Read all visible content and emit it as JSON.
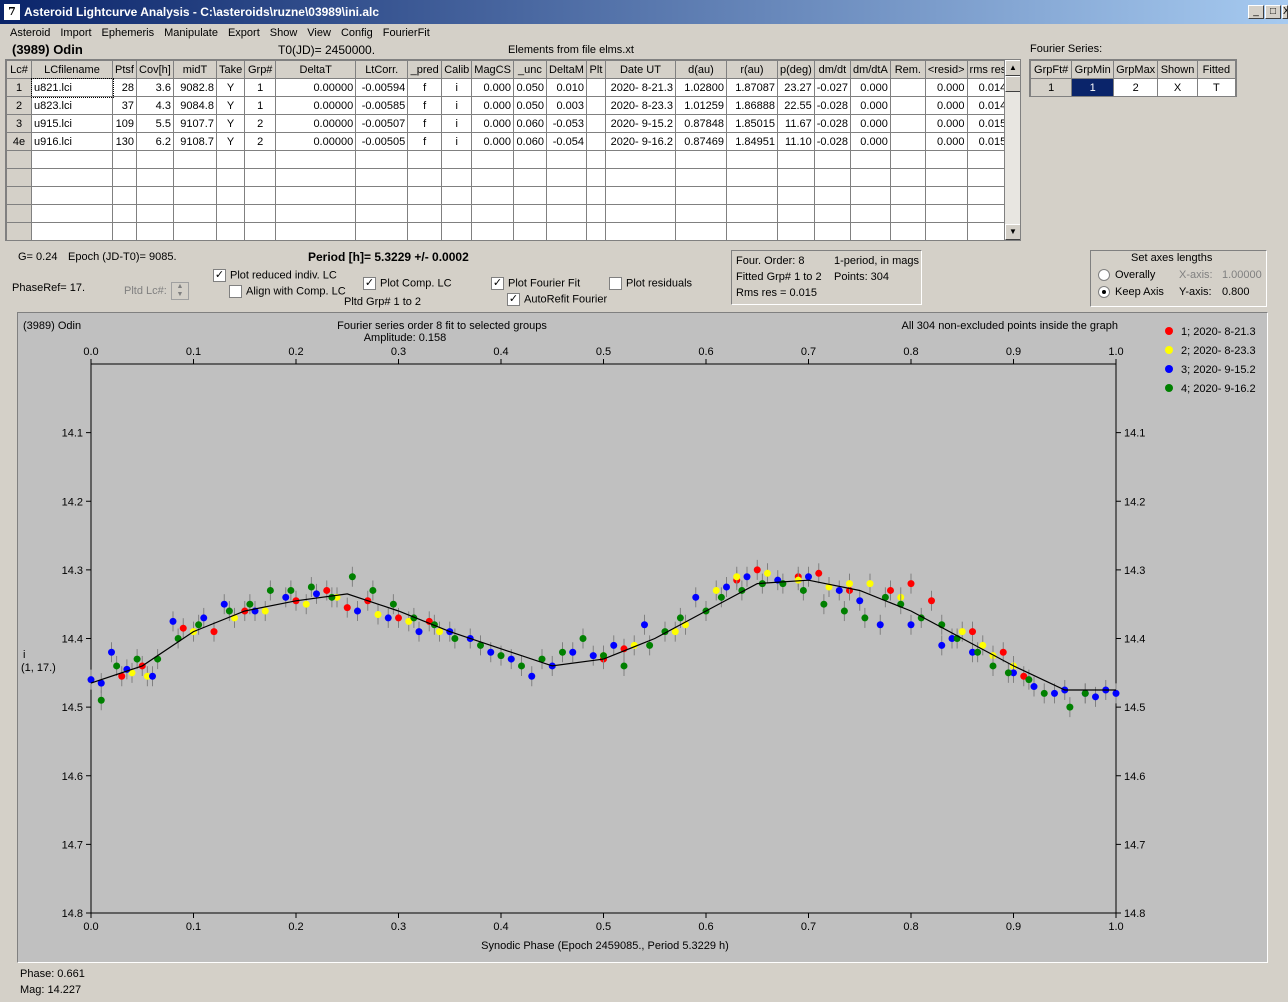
{
  "window": {
    "title": "Asteroid Lightcurve Analysis - C:\\asteroids\\ruzne\\03989\\ini.alc",
    "app_icon_text": "7",
    "btn_min": "_",
    "btn_max": "□",
    "btn_close": "X"
  },
  "menu": [
    "Asteroid",
    "Import",
    "Ephemeris",
    "Manipulate",
    "Export",
    "Show",
    "View",
    "Config",
    "FourierFit"
  ],
  "header": {
    "asteroid_name": "(3989)  Odin",
    "t0": "T0(JD)= 2450000.",
    "elements": "Elements from file elms.xt",
    "fourier_series": "Fourier Series:"
  },
  "lc_table": {
    "columns": [
      "Lc#",
      "LCfilename",
      "Ptsf",
      "Cov[h]",
      "midT",
      "Take",
      "Grp#",
      "DeltaT",
      "LtCorr.",
      "_pred",
      "Calib",
      "MagCS",
      "_unc",
      "DeltaM",
      "Plt",
      "Date UT",
      "d(au)",
      "r(au)",
      "p(deg)",
      "dm/dt",
      "dm/dtA",
      "Rem.",
      "<resid>",
      "rms res"
    ],
    "rows": [
      [
        "1",
        "u821.lci",
        "28",
        "3.6",
        "9082.8",
        "Y",
        "1",
        "0.00000",
        "-0.00594",
        "f",
        "i",
        "0.000",
        "0.050",
        "0.010",
        "",
        "2020- 8-21.3",
        "1.02800",
        "1.87087",
        "23.27",
        "-0.027",
        "0.000",
        "",
        "0.000",
        "0.014"
      ],
      [
        "2",
        "u823.lci",
        "37",
        "4.3",
        "9084.8",
        "Y",
        "1",
        "0.00000",
        "-0.00585",
        "f",
        "i",
        "0.000",
        "0.050",
        "0.003",
        "",
        "2020- 8-23.3",
        "1.01259",
        "1.86888",
        "22.55",
        "-0.028",
        "0.000",
        "",
        "0.000",
        "0.014"
      ],
      [
        "3",
        "u915.lci",
        "109",
        "5.5",
        "9107.7",
        "Y",
        "2",
        "0.00000",
        "-0.00507",
        "f",
        "i",
        "0.000",
        "0.060",
        "-0.053",
        "",
        "2020- 9-15.2",
        "0.87848",
        "1.85015",
        "11.67",
        "-0.028",
        "0.000",
        "",
        "0.000",
        "0.015"
      ],
      [
        "4e",
        "u916.lci",
        "130",
        "6.2",
        "9108.7",
        "Y",
        "2",
        "0.00000",
        "-0.00505",
        "f",
        "i",
        "0.000",
        "0.060",
        "-0.054",
        "",
        "2020- 9-16.2",
        "0.87469",
        "1.84951",
        "11.10",
        "-0.028",
        "0.000",
        "",
        "0.000",
        "0.015"
      ]
    ],
    "empty_rows": 5
  },
  "fourier_table": {
    "columns": [
      "GrpFt#",
      "GrpMin",
      "GrpMax",
      "Shown",
      "Fitted"
    ],
    "row": [
      "1",
      "1",
      "2",
      "X",
      "T"
    ]
  },
  "controls": {
    "g": "G= 0.24",
    "epoch": "Epoch (JD-T0)= 9085.",
    "phaseref": "PhaseRef= 17.",
    "pltd_lc": "Pltd Lc#:",
    "period": "Period [h]= 5.3229 +/- 0.0002",
    "plot_reduced": "Plot reduced indiv. LC",
    "align_comp": "Align with Comp. LC",
    "plot_comp": "Plot Comp. LC",
    "pltd_grp": "Pltd Grp#  1   to   2",
    "plot_fourier": "Plot Fourier Fit",
    "autorefit": "AutoRefit Fourier",
    "plot_residuals": "Plot residuals",
    "check_plot_reduced": true,
    "check_align_comp": false,
    "check_plot_comp": true,
    "check_plot_fourier": true,
    "check_autorefit": true,
    "check_plot_residuals": false,
    "four_order": "Four. Order:  8",
    "one_period": "1-period, in mags",
    "fitted_grp": "Fitted Grp# 1 to 2",
    "points": "Points: 304",
    "rms_res": "Rms res      = 0.015",
    "axes_title": "Set axes lengths",
    "overally": "Overally",
    "keep_axis": "Keep Axis",
    "x_axis_label": "X-axis:",
    "x_axis_value": "1.00000",
    "y_axis_label": "Y-axis:",
    "y_axis_value": "0.800"
  },
  "plot": {
    "name": "(3989) Odin",
    "title1": "Fourier series order 8 fit to selected groups",
    "title2": "Amplitude: 0.158",
    "info": "All 304 non-excluded points inside the graph",
    "ylabel1": "i",
    "ylabel2": "(1, 17.)",
    "xlabel": "Synodic Phase (Epoch 2459085., Period 5.3229 h)"
  },
  "status": {
    "phase": "Phase:  0.661",
    "mag": "Mag:     14.227"
  },
  "colors": {
    "plot_bg": "#c0c0c0",
    "fit_line": "#000000",
    "selected_cell": "#0a246a"
  },
  "chart_data": {
    "type": "scatter",
    "xlim": [
      0.0,
      1.0
    ],
    "ylim": [
      14.8,
      14.0
    ],
    "y_inverted": true,
    "x_ticks": [
      "0.0",
      "0.1",
      "0.2",
      "0.3",
      "0.4",
      "0.5",
      "0.6",
      "0.7",
      "0.8",
      "0.9",
      "1.0"
    ],
    "y_ticks": [
      "14.1",
      "14.2",
      "14.3",
      "14.4",
      "14.5",
      "14.6",
      "14.7",
      "14.8"
    ],
    "legend_position": "top-right",
    "series": [
      {
        "name": "1; 2020- 8-21.3",
        "color": "#ff0000",
        "x": [
          0.03,
          0.05,
          0.09,
          0.12,
          0.15,
          0.2,
          0.23,
          0.25,
          0.27,
          0.3,
          0.33,
          0.5,
          0.52,
          0.63,
          0.65,
          0.69,
          0.71,
          0.74,
          0.78,
          0.8,
          0.82,
          0.86,
          0.89,
          0.91
        ],
        "y": [
          14.455,
          14.44,
          14.385,
          14.39,
          14.36,
          14.345,
          14.33,
          14.355,
          14.345,
          14.37,
          14.375,
          14.43,
          14.415,
          14.315,
          14.3,
          14.31,
          14.305,
          14.33,
          14.33,
          14.32,
          14.345,
          14.39,
          14.42,
          14.455
        ]
      },
      {
        "name": "2; 2020- 8-23.3",
        "color": "#ffff00",
        "x": [
          0.04,
          0.055,
          0.1,
          0.14,
          0.17,
          0.21,
          0.24,
          0.28,
          0.31,
          0.34,
          0.5,
          0.53,
          0.57,
          0.58,
          0.61,
          0.63,
          0.66,
          0.69,
          0.72,
          0.74,
          0.76,
          0.79,
          0.85,
          0.87,
          0.88,
          0.9
        ],
        "y": [
          14.45,
          14.455,
          14.39,
          14.37,
          14.36,
          14.35,
          14.34,
          14.365,
          14.375,
          14.39,
          14.425,
          14.41,
          14.39,
          14.38,
          14.33,
          14.31,
          14.305,
          14.315,
          14.325,
          14.32,
          14.32,
          14.34,
          14.39,
          14.41,
          14.425,
          14.44
        ]
      },
      {
        "name": "3; 2020- 9-15.2",
        "color": "#0000ff",
        "x": [
          0.0,
          0.01,
          0.02,
          0.035,
          0.06,
          0.08,
          0.11,
          0.13,
          0.16,
          0.19,
          0.22,
          0.26,
          0.29,
          0.32,
          0.35,
          0.37,
          0.39,
          0.41,
          0.43,
          0.45,
          0.47,
          0.49,
          0.51,
          0.54,
          0.59,
          0.62,
          0.64,
          0.67,
          0.7,
          0.73,
          0.75,
          0.77,
          0.8,
          0.83,
          0.84,
          0.86,
          0.9,
          0.92,
          0.94,
          0.95,
          0.97,
          0.98,
          0.99,
          1.0
        ],
        "y": [
          14.46,
          14.465,
          14.42,
          14.445,
          14.455,
          14.375,
          14.37,
          14.35,
          14.36,
          14.34,
          14.335,
          14.36,
          14.37,
          14.39,
          14.39,
          14.4,
          14.42,
          14.43,
          14.455,
          14.44,
          14.42,
          14.425,
          14.41,
          14.38,
          14.34,
          14.325,
          14.31,
          14.315,
          14.31,
          14.33,
          14.345,
          14.38,
          14.38,
          14.41,
          14.4,
          14.42,
          14.45,
          14.47,
          14.48,
          14.475,
          14.48,
          14.485,
          14.475,
          14.48
        ]
      },
      {
        "name": "4; 2020- 9-16.2",
        "color": "#008000",
        "x": [
          0.01,
          0.025,
          0.045,
          0.065,
          0.085,
          0.105,
          0.135,
          0.155,
          0.175,
          0.195,
          0.215,
          0.235,
          0.255,
          0.275,
          0.295,
          0.315,
          0.335,
          0.355,
          0.38,
          0.4,
          0.42,
          0.44,
          0.46,
          0.48,
          0.5,
          0.52,
          0.545,
          0.56,
          0.575,
          0.6,
          0.615,
          0.635,
          0.655,
          0.675,
          0.695,
          0.715,
          0.735,
          0.755,
          0.775,
          0.79,
          0.81,
          0.83,
          0.845,
          0.865,
          0.88,
          0.895,
          0.915,
          0.93,
          0.955,
          0.97
        ],
        "y": [
          14.49,
          14.44,
          14.43,
          14.43,
          14.4,
          14.38,
          14.36,
          14.35,
          14.33,
          14.33,
          14.325,
          14.34,
          14.31,
          14.33,
          14.35,
          14.37,
          14.38,
          14.4,
          14.41,
          14.425,
          14.44,
          14.43,
          14.42,
          14.4,
          14.425,
          14.44,
          14.41,
          14.39,
          14.37,
          14.36,
          14.34,
          14.33,
          14.32,
          14.32,
          14.33,
          14.35,
          14.36,
          14.37,
          14.34,
          14.35,
          14.37,
          14.38,
          14.4,
          14.42,
          14.44,
          14.45,
          14.46,
          14.48,
          14.5,
          14.48
        ]
      }
    ],
    "fit": {
      "name": "Fourier fit",
      "x": [
        0.0,
        0.05,
        0.1,
        0.15,
        0.2,
        0.25,
        0.3,
        0.35,
        0.4,
        0.45,
        0.5,
        0.55,
        0.6,
        0.65,
        0.7,
        0.75,
        0.8,
        0.85,
        0.9,
        0.95,
        1.0
      ],
      "y": [
        14.465,
        14.44,
        14.39,
        14.36,
        14.345,
        14.335,
        14.36,
        14.39,
        14.415,
        14.44,
        14.43,
        14.4,
        14.36,
        14.32,
        14.315,
        14.33,
        14.36,
        14.4,
        14.44,
        14.475,
        14.475
      ]
    }
  }
}
